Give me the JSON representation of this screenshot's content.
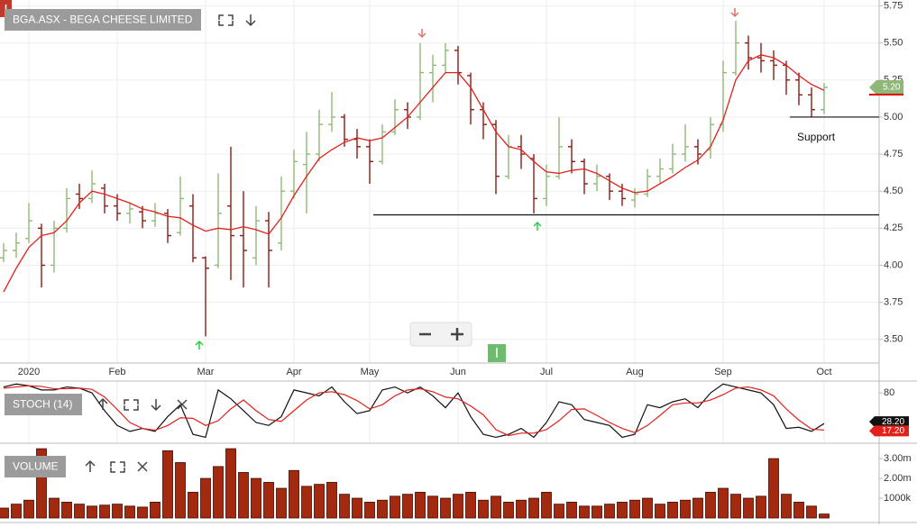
{
  "chart_data": [
    {
      "type": "ohlc",
      "title": "BGA.ASX - BEGA CHEESE LIMITED",
      "categories": [
        null,
        null,
        "2020",
        null,
        null,
        null,
        null,
        null,
        null,
        "Feb",
        null,
        null,
        null,
        null,
        null,
        null,
        "Mar",
        null,
        null,
        null,
        null,
        null,
        null,
        "Apr",
        null,
        null,
        null,
        null,
        null,
        "May",
        null,
        null,
        null,
        null,
        null,
        null,
        "Jun",
        null,
        null,
        null,
        null,
        null,
        null,
        "Jul",
        null,
        null,
        null,
        null,
        null,
        null,
        "Aug",
        null,
        null,
        null,
        null,
        null,
        null,
        "Sep",
        null,
        null,
        null,
        null,
        null,
        null,
        null,
        "Oct"
      ],
      "open": [
        4.05,
        4.1,
        4.18,
        4.25,
        4.0,
        4.25,
        4.48,
        4.45,
        4.52,
        4.4,
        4.35,
        4.36,
        4.3,
        4.35,
        4.22,
        4.4,
        4.05,
        4.0,
        4.4,
        4.2,
        4.05,
        4.3,
        4.15,
        4.5,
        4.68,
        4.75,
        4.95,
        5.0,
        4.85,
        4.8,
        4.7,
        4.9,
        5.05,
        5.0,
        5.3,
        5.35,
        5.45,
        5.28,
        5.05,
        4.95,
        4.6,
        4.8,
        4.72,
        4.45,
        4.6,
        4.8,
        4.7,
        4.55,
        4.6,
        4.5,
        4.44,
        4.48,
        4.6,
        4.65,
        4.75,
        4.8,
        4.78,
        4.95,
        5.3,
        5.5,
        5.4,
        5.38,
        5.35,
        5.25,
        5.15,
        5.05
      ],
      "high": [
        4.15,
        4.22,
        4.42,
        4.28,
        4.3,
        4.52,
        4.55,
        4.64,
        4.55,
        4.48,
        4.42,
        4.4,
        4.42,
        4.38,
        4.6,
        4.48,
        4.06,
        4.62,
        4.8,
        4.5,
        4.4,
        4.36,
        4.6,
        4.78,
        4.9,
        5.05,
        5.17,
        5.02,
        4.92,
        4.85,
        4.95,
        5.12,
        5.1,
        5.5,
        5.42,
        5.5,
        5.48,
        5.3,
        5.1,
        4.98,
        4.88,
        4.88,
        4.75,
        4.68,
        5.0,
        4.85,
        4.72,
        4.68,
        4.62,
        4.55,
        4.52,
        4.65,
        4.72,
        4.82,
        4.95,
        4.85,
        5.0,
        5.38,
        5.65,
        5.55,
        5.5,
        5.45,
        5.38,
        5.3,
        5.2,
        5.23
      ],
      "low": [
        4.02,
        4.05,
        4.15,
        3.85,
        3.95,
        4.22,
        4.38,
        4.42,
        4.35,
        4.3,
        4.28,
        4.25,
        4.26,
        4.15,
        4.2,
        4.02,
        3.52,
        3.98,
        3.9,
        3.85,
        4.0,
        3.85,
        4.1,
        4.45,
        4.35,
        4.7,
        4.9,
        4.8,
        4.72,
        4.55,
        4.68,
        4.88,
        4.92,
        4.98,
        5.1,
        5.3,
        5.22,
        4.95,
        4.85,
        4.48,
        4.58,
        4.65,
        4.35,
        4.4,
        4.58,
        4.62,
        4.48,
        4.5,
        4.44,
        4.4,
        4.39,
        4.46,
        4.55,
        4.62,
        4.7,
        4.68,
        4.72,
        4.9,
        5.28,
        5.32,
        5.3,
        5.25,
        5.15,
        5.08,
        5.0,
        5.02
      ],
      "close": [
        4.1,
        4.15,
        4.3,
        4.0,
        4.25,
        4.45,
        4.45,
        4.55,
        4.4,
        4.35,
        4.38,
        4.3,
        4.35,
        4.2,
        4.45,
        4.05,
        3.98,
        4.35,
        4.2,
        4.1,
        4.3,
        4.1,
        4.5,
        4.7,
        4.75,
        4.95,
        5.0,
        4.85,
        4.8,
        4.7,
        4.9,
        5.05,
        5.0,
        5.3,
        5.35,
        5.45,
        5.3,
        5.05,
        4.95,
        4.6,
        4.8,
        4.75,
        4.45,
        4.6,
        4.8,
        4.7,
        4.55,
        4.6,
        4.5,
        4.45,
        4.48,
        4.6,
        4.65,
        4.75,
        4.8,
        4.75,
        4.95,
        5.3,
        5.5,
        5.4,
        5.38,
        5.35,
        5.25,
        5.15,
        5.05,
        5.2
      ],
      "up_color": "#8fb878",
      "down_color": "#8b1c14",
      "ma": {
        "color": "#e3201b",
        "values": [
          3.82,
          3.98,
          4.12,
          4.2,
          4.22,
          4.3,
          4.42,
          4.5,
          4.48,
          4.45,
          4.42,
          4.38,
          4.36,
          4.33,
          4.32,
          4.27,
          4.23,
          4.25,
          4.24,
          4.26,
          4.24,
          4.21,
          4.32,
          4.47,
          4.6,
          4.72,
          4.78,
          4.83,
          4.86,
          4.84,
          4.86,
          4.93,
          5.0,
          5.1,
          5.2,
          5.3,
          5.3,
          5.2,
          5.05,
          4.9,
          4.8,
          4.78,
          4.7,
          4.63,
          4.62,
          4.64,
          4.65,
          4.62,
          4.57,
          4.52,
          4.49,
          4.5,
          4.55,
          4.6,
          4.66,
          4.71,
          4.8,
          4.98,
          5.25,
          5.38,
          5.42,
          5.4,
          5.35,
          5.28,
          5.22,
          5.18
        ]
      },
      "support_levels": [
        4.34,
        5.0
      ],
      "annotation": "Support",
      "last_price": {
        "value": 5.2,
        "label": "5.20"
      },
      "ylim": [
        3.34,
        5.79
      ],
      "yticks": [
        5.75,
        {
          "value": 5.5,
          "label": "5.50"
        },
        5.25,
        {
          "value": 5.0,
          "label": "5.00"
        },
        4.75,
        {
          "value": 4.5,
          "label": "4.50"
        },
        4.25,
        {
          "value": 4.0,
          "label": "4.00"
        },
        3.75,
        {
          "value": 3.5,
          "label": "3.50"
        }
      ],
      "grid": true
    },
    {
      "type": "line",
      "title": "STOCH (14)",
      "series": [
        {
          "color": "#111111",
          "values": [
            90,
            95,
            92,
            85,
            85,
            90,
            88,
            80,
            50,
            25,
            15,
            20,
            15,
            40,
            60,
            10,
            5,
            85,
            70,
            50,
            30,
            25,
            40,
            85,
            80,
            75,
            90,
            65,
            45,
            50,
            85,
            90,
            80,
            90,
            75,
            55,
            80,
            40,
            10,
            5,
            10,
            20,
            5,
            30,
            65,
            60,
            35,
            30,
            25,
            5,
            10,
            60,
            55,
            65,
            70,
            55,
            80,
            95,
            90,
            85,
            80,
            60,
            20,
            22,
            15,
            28.2
          ],
          "last_label": "28.20"
        },
        {
          "color": "#e3201b",
          "values": [
            88,
            90,
            92,
            91,
            87,
            87,
            88,
            86,
            73,
            52,
            30,
            20,
            17,
            25,
            38,
            37,
            25,
            33,
            53,
            68,
            50,
            35,
            32,
            50,
            68,
            80,
            82,
            77,
            67,
            53,
            60,
            75,
            85,
            87,
            82,
            73,
            70,
            58,
            43,
            18,
            8,
            12,
            12,
            18,
            33,
            52,
            53,
            42,
            30,
            20,
            13,
            25,
            42,
            60,
            63,
            63,
            68,
            77,
            88,
            90,
            85,
            75,
            53,
            34,
            19,
            17.2
          ],
          "last_label": "17.20"
        }
      ],
      "ylim": [
        -5,
        100
      ],
      "yticks": [
        80
      ]
    },
    {
      "type": "bar",
      "title": "VOLUME",
      "color": "#a3290f",
      "values": [
        500000,
        700000,
        900000,
        3500000,
        1000000,
        800000,
        700000,
        600000,
        650000,
        700000,
        600000,
        550000,
        800000,
        3400000,
        2800000,
        1300000,
        2000000,
        2600000,
        3500000,
        2300000,
        2000000,
        1800000,
        1500000,
        2400000,
        1600000,
        1700000,
        1800000,
        1200000,
        1000000,
        800000,
        900000,
        1100000,
        1200000,
        1300000,
        1100000,
        1000000,
        1200000,
        1300000,
        900000,
        1100000,
        800000,
        900000,
        1000000,
        1300000,
        700000,
        800000,
        600000,
        600000,
        700000,
        800000,
        900000,
        1000000,
        700000,
        800000,
        900000,
        1000000,
        1300000,
        1500000,
        1200000,
        1000000,
        1100000,
        3000000,
        1200000,
        800000,
        600000,
        200000
      ],
      "ylim": [
        0,
        3550000
      ],
      "yticks": [
        {
          "value": 3000000,
          "label": "3.00m"
        },
        {
          "value": 2000000,
          "label": "2.00m"
        },
        {
          "value": 1000000,
          "label": "1000k"
        }
      ]
    }
  ]
}
